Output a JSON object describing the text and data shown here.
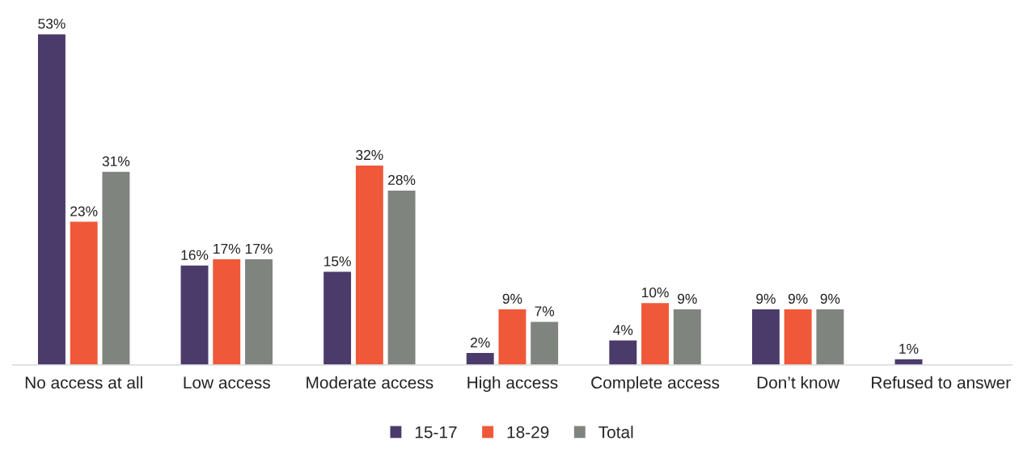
{
  "chart_data": {
    "type": "bar",
    "categories": [
      "No access at all",
      "Low access",
      "Moderate access",
      "High access",
      "Complete access",
      "Don’t know",
      "Refused to answer"
    ],
    "series": [
      {
        "name": "15-17",
        "color": "#4b3b6b",
        "values": [
          53,
          16,
          15,
          2,
          4,
          9,
          1
        ],
        "value_labels": [
          "53%",
          "16%",
          "15%",
          "2%",
          "4%",
          "9%",
          "1%"
        ]
      },
      {
        "name": "18-29",
        "color": "#f0583a",
        "values": [
          23,
          17,
          32,
          9,
          10,
          9,
          null
        ],
        "value_labels": [
          "23%",
          "17%",
          "32%",
          "9%",
          "10%",
          "9%",
          null
        ]
      },
      {
        "name": "Total",
        "color": "#80847f",
        "values": [
          31,
          17,
          28,
          7,
          9,
          9,
          null
        ],
        "value_labels": [
          "31%",
          "17%",
          "28%",
          "7%",
          "9%",
          "9%",
          null
        ]
      }
    ],
    "tick_labels": "x",
    "legend": "bottom"
  }
}
